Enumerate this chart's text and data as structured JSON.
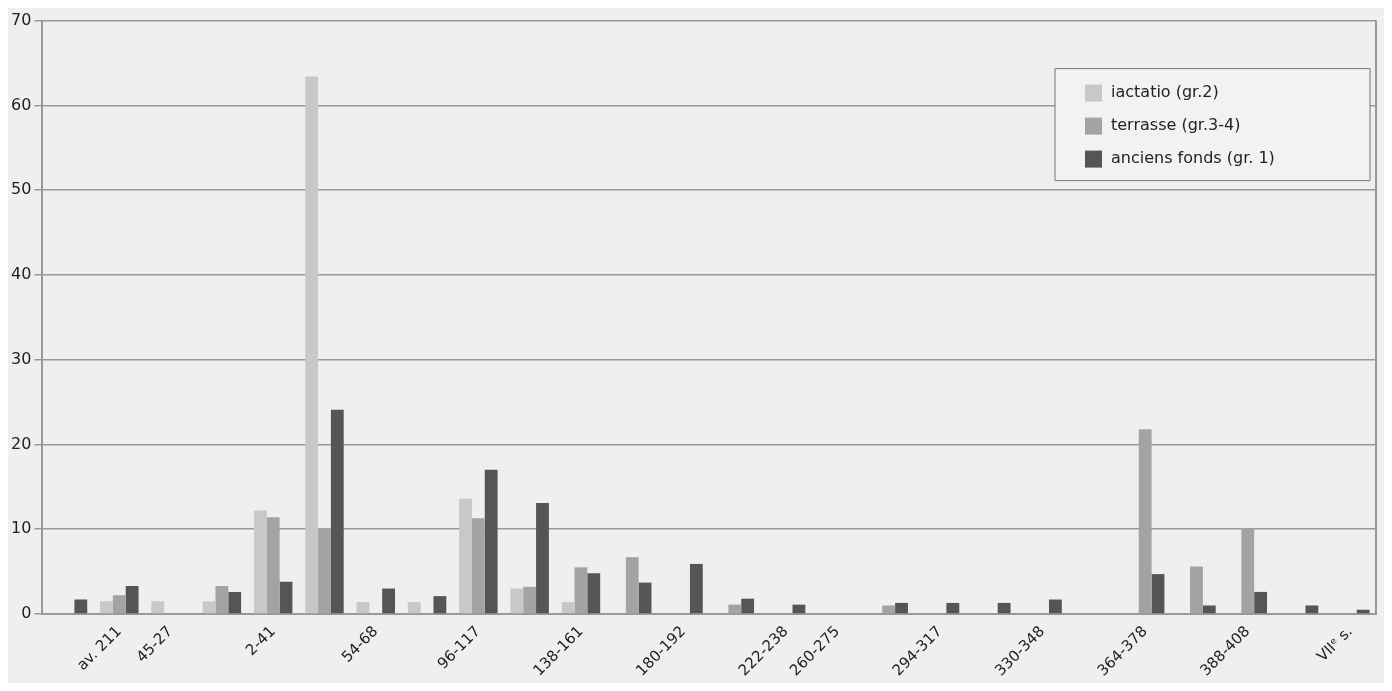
{
  "chart_data": {
    "type": "bar",
    "categories": [
      null,
      "av. 211",
      "45-27",
      null,
      "2-41",
      null,
      "54-68",
      null,
      "96-117",
      null,
      "138-161",
      null,
      "180-192",
      null,
      "222-238",
      "260-275",
      null,
      "294-317",
      null,
      "330-348",
      null,
      "364-378",
      null,
      "388-408",
      null,
      "VIIᵉ s."
    ],
    "series": [
      {
        "name": "iactatio (gr.2)",
        "color": "#c8c8c8",
        "values": [
          null,
          1.5,
          1.5,
          1.5,
          12.2,
          63.4,
          1.4,
          1.4,
          13.6,
          3.0,
          1.4,
          null,
          null,
          null,
          null,
          null,
          null,
          null,
          null,
          null,
          null,
          null,
          null,
          null,
          null,
          null
        ]
      },
      {
        "name": "terrasse (gr.3-4)",
        "color": "#a3a3a3",
        "values": [
          null,
          2.2,
          null,
          3.3,
          11.4,
          10.1,
          null,
          null,
          11.3,
          3.2,
          5.5,
          6.7,
          null,
          1.1,
          null,
          null,
          1.0,
          null,
          null,
          null,
          null,
          21.8,
          5.6,
          10.1,
          null,
          null
        ]
      },
      {
        "name": "anciens fonds (gr. 1)",
        "color": "#555555",
        "values": [
          1.7,
          3.3,
          null,
          2.6,
          3.8,
          24.1,
          3.0,
          2.1,
          17.0,
          13.1,
          4.8,
          3.7,
          5.9,
          1.8,
          1.1,
          null,
          1.3,
          1.3,
          1.3,
          1.7,
          null,
          4.7,
          1.0,
          2.6,
          1.0,
          0.5
        ]
      }
    ],
    "ylim": [
      0,
      70
    ],
    "yticks": [
      0,
      10,
      20,
      30,
      40,
      50,
      60,
      70
    ],
    "grid": "y",
    "legend": "top right"
  }
}
